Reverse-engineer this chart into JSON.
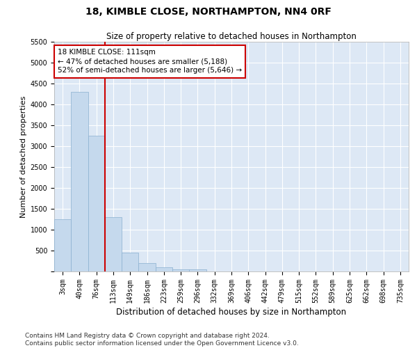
{
  "title": "18, KIMBLE CLOSE, NORTHAMPTON, NN4 0RF",
  "subtitle": "Size of property relative to detached houses in Northampton",
  "xlabel": "Distribution of detached houses by size in Northampton",
  "ylabel": "Number of detached properties",
  "categories": [
    "3sqm",
    "40sqm",
    "76sqm",
    "113sqm",
    "149sqm",
    "186sqm",
    "223sqm",
    "259sqm",
    "296sqm",
    "332sqm",
    "369sqm",
    "406sqm",
    "442sqm",
    "479sqm",
    "515sqm",
    "552sqm",
    "589sqm",
    "625sqm",
    "662sqm",
    "698sqm",
    "735sqm"
  ],
  "values": [
    1250,
    4300,
    3250,
    1300,
    450,
    200,
    100,
    55,
    55,
    0,
    0,
    0,
    0,
    0,
    0,
    0,
    0,
    0,
    0,
    0,
    0
  ],
  "bar_color": "#c5d9ed",
  "bar_edge_color": "#8ab0d0",
  "vline_color": "#cc0000",
  "annotation_text": "18 KIMBLE CLOSE: 111sqm\n← 47% of detached houses are smaller (5,188)\n52% of semi-detached houses are larger (5,646) →",
  "annotation_box_color": "#ffffff",
  "annotation_box_edge_color": "#cc0000",
  "ylim": [
    0,
    5500
  ],
  "yticks": [
    0,
    500,
    1000,
    1500,
    2000,
    2500,
    3000,
    3500,
    4000,
    4500,
    5000,
    5500
  ],
  "footer_line1": "Contains HM Land Registry data © Crown copyright and database right 2024.",
  "footer_line2": "Contains public sector information licensed under the Open Government Licence v3.0.",
  "background_color": "#ffffff",
  "plot_bg_color": "#dde8f5",
  "grid_color": "#ffffff",
  "title_fontsize": 10,
  "subtitle_fontsize": 8.5,
  "xlabel_fontsize": 8.5,
  "ylabel_fontsize": 8,
  "tick_fontsize": 7,
  "annotation_fontsize": 7.5,
  "footer_fontsize": 6.5
}
